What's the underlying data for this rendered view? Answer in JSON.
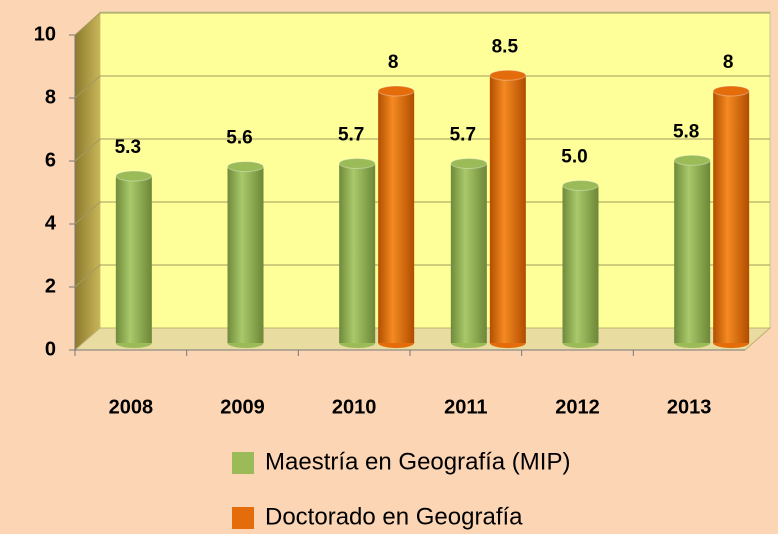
{
  "chart_data": {
    "type": "bar",
    "categories": [
      "2008",
      "2009",
      "2010",
      "2011",
      "2012",
      "2013"
    ],
    "series": [
      {
        "name": "Maestría en Geografía (MIP)",
        "color": "#9bbb59",
        "values": [
          5.3,
          5.6,
          5.7,
          5.7,
          5.0,
          5.8
        ],
        "value_labels": [
          "5.3",
          "5.6",
          "5.7",
          "5.7",
          "5.0",
          "5.8"
        ]
      },
      {
        "name": "Doctorado en Geografía",
        "color": "#e46c0a",
        "values": [
          null,
          null,
          8,
          8.5,
          null,
          8
        ]
      }
    ],
    "ylim": [
      0,
      10
    ],
    "yticks": [
      0,
      2,
      4,
      6,
      8,
      10
    ],
    "grid": true,
    "legend": "bottom"
  }
}
